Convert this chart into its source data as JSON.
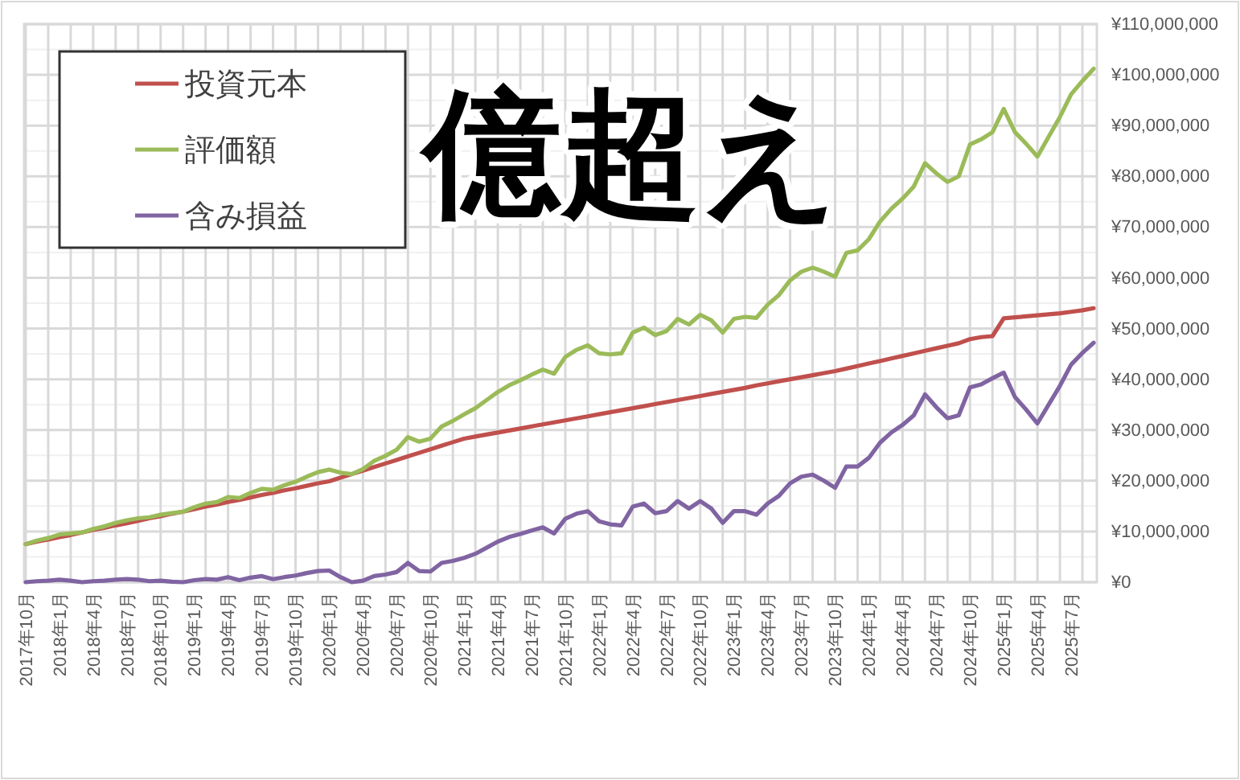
{
  "chart_data": {
    "type": "line",
    "categories": [
      "2017年10月",
      null,
      null,
      "2018年1月",
      null,
      null,
      "2018年4月",
      null,
      null,
      "2018年7月",
      null,
      null,
      "2018年10月",
      null,
      null,
      "2019年1月",
      null,
      null,
      "2019年4月",
      null,
      null,
      "2019年7月",
      null,
      null,
      "2019年10月",
      null,
      null,
      "2020年1月",
      null,
      null,
      "2020年4月",
      null,
      null,
      "2020年7月",
      null,
      null,
      "2020年10月",
      null,
      null,
      "2021年1月",
      null,
      null,
      "2021年4月",
      null,
      null,
      "2021年7月",
      null,
      null,
      "2021年10月",
      null,
      null,
      "2022年1月",
      null,
      null,
      "2022年4月",
      null,
      null,
      "2022年7月",
      null,
      null,
      "2022年10月",
      null,
      null,
      "2023年1月",
      null,
      null,
      "2023年4月",
      null,
      null,
      "2023年7月",
      null,
      null,
      "2023年10月",
      null,
      null,
      "2024年1月",
      null,
      null,
      "2024年4月",
      null,
      null,
      "2024年7月",
      null,
      null,
      "2024年10月",
      null,
      null,
      "2025年1月",
      null,
      null,
      "2025年4月",
      null,
      null,
      "2025年7月",
      null,
      null
    ],
    "series": [
      {
        "name": "投資元本",
        "color": "#c0504d",
        "values": [
          7500000,
          8000000,
          8400000,
          8900000,
          9300000,
          9800000,
          10300000,
          10700000,
          11200000,
          11600000,
          12100000,
          12600000,
          13000000,
          13500000,
          13900000,
          14400000,
          14900000,
          15300000,
          15800000,
          16200000,
          16700000,
          17200000,
          17600000,
          18100000,
          18500000,
          19000000,
          19500000,
          19900000,
          20600000,
          21300000,
          22000000,
          22700000,
          23400000,
          24100000,
          24800000,
          25500000,
          26200000,
          26900000,
          27600000,
          28300000,
          28700000,
          29100000,
          29500000,
          29900000,
          30300000,
          30700000,
          31100000,
          31500000,
          31900000,
          32300000,
          32700000,
          33100000,
          33500000,
          33900000,
          34300000,
          34700000,
          35100000,
          35500000,
          35900000,
          36300000,
          36700000,
          37100000,
          37500000,
          37900000,
          38300000,
          38800000,
          39200000,
          39600000,
          40000000,
          40400000,
          40800000,
          41200000,
          41600000,
          42100000,
          42600000,
          43100000,
          43600000,
          44100000,
          44600000,
          45100000,
          45600000,
          46100000,
          46600000,
          47100000,
          47900000,
          48300000,
          48500000,
          52000000,
          52200000,
          52400000,
          52600000,
          52800000,
          53000000,
          53300000,
          53600000,
          54000000
        ]
      },
      {
        "name": "評価額",
        "color": "#9bbb59",
        "values": [
          7500000,
          8200000,
          8700000,
          9400000,
          9600000,
          9800000,
          10500000,
          11000000,
          11700000,
          12200000,
          12600000,
          12800000,
          13300000,
          13600000,
          13900000,
          14800000,
          15500000,
          15800000,
          16800000,
          16600000,
          17600000,
          18400000,
          18200000,
          19100000,
          19800000,
          20800000,
          21700000,
          22200000,
          21600000,
          21300000,
          22300000,
          23900000,
          24900000,
          26100000,
          28600000,
          27700000,
          28300000,
          30700000,
          31800000,
          33100000,
          34300000,
          35900000,
          37500000,
          38800000,
          39800000,
          40900000,
          41900000,
          41100000,
          44400000,
          45800000,
          46700000,
          45100000,
          44900000,
          45100000,
          49200000,
          50200000,
          48700000,
          49500000,
          51900000,
          50800000,
          52700000,
          51600000,
          49200000,
          51900000,
          52300000,
          52100000,
          54700000,
          56600000,
          59500000,
          61200000,
          62000000,
          61200000,
          60200000,
          64900000,
          65400000,
          67600000,
          71100000,
          73600000,
          75600000,
          78000000,
          82600000,
          80600000,
          78900000,
          80000000,
          86300000,
          87300000,
          88700000,
          93300000,
          88700000,
          86400000,
          83900000,
          87800000,
          91700000,
          96200000,
          98800000,
          101200000
        ]
      },
      {
        "name": "含み損益",
        "color": "#8064a2",
        "values": [
          0,
          200000,
          300000,
          500000,
          300000,
          0,
          200000,
          300000,
          500000,
          600000,
          500000,
          200000,
          300000,
          100000,
          0,
          400000,
          600000,
          500000,
          1000000,
          400000,
          900000,
          1200000,
          600000,
          1000000,
          1300000,
          1800000,
          2200000,
          2300000,
          1000000,
          0,
          300000,
          1200000,
          1500000,
          2000000,
          3800000,
          2200000,
          2100000,
          3800000,
          4200000,
          4800000,
          5600000,
          6800000,
          8000000,
          8900000,
          9500000,
          10200000,
          10800000,
          9600000,
          12500000,
          13500000,
          14000000,
          12000000,
          11400000,
          11200000,
          14900000,
          15500000,
          13600000,
          14000000,
          16000000,
          14500000,
          16000000,
          14500000,
          11700000,
          14000000,
          14000000,
          13300000,
          15500000,
          17000000,
          19500000,
          20800000,
          21200000,
          20000000,
          18600000,
          22800000,
          22800000,
          24500000,
          27500000,
          29500000,
          31000000,
          32900000,
          37000000,
          34500000,
          32300000,
          32900000,
          38400000,
          39000000,
          40200000,
          41300000,
          36500000,
          34000000,
          31300000,
          35000000,
          38700000,
          42900000,
          45200000,
          47200000
        ]
      }
    ],
    "ylim": [
      0,
      110000000
    ],
    "yticks": [
      {
        "value": 0,
        "label": "¥0"
      },
      {
        "value": 5000000,
        "label": null
      },
      {
        "value": 10000000,
        "label": "¥10,000,000"
      },
      {
        "value": 15000000,
        "label": null
      },
      {
        "value": 20000000,
        "label": "¥20,000,000"
      },
      {
        "value": 25000000,
        "label": null
      },
      {
        "value": 30000000,
        "label": "¥30,000,000"
      },
      {
        "value": 35000000,
        "label": null
      },
      {
        "value": 40000000,
        "label": "¥40,000,000"
      },
      {
        "value": 45000000,
        "label": null
      },
      {
        "value": 50000000,
        "label": "¥50,000,000"
      },
      {
        "value": 55000000,
        "label": null
      },
      {
        "value": 60000000,
        "label": "¥60,000,000"
      },
      {
        "value": 65000000,
        "label": null
      },
      {
        "value": 70000000,
        "label": "¥70,000,000"
      },
      {
        "value": 75000000,
        "label": null
      },
      {
        "value": 80000000,
        "label": "¥80,000,000"
      },
      {
        "value": 85000000,
        "label": null
      },
      {
        "value": 90000000,
        "label": "¥90,000,000"
      },
      {
        "value": 95000000,
        "label": null
      },
      {
        "value": 100000000,
        "label": "¥100,000,000"
      },
      {
        "value": 105000000,
        "label": null
      },
      {
        "value": 110000000,
        "label": "¥110,000,000"
      }
    ],
    "grid": true,
    "legend": "top left",
    "marker": "none",
    "line_style": "solid",
    "annotations": [
      "億超え"
    ]
  }
}
